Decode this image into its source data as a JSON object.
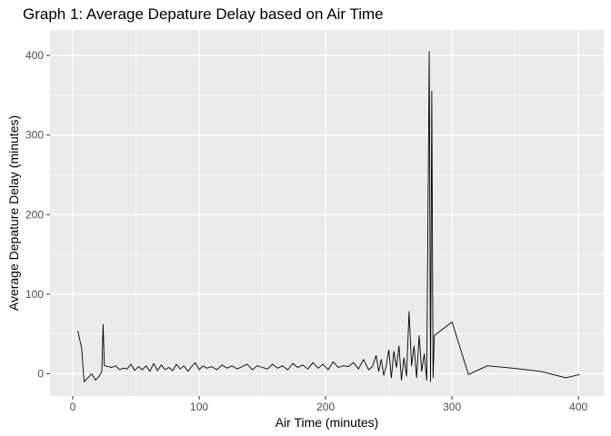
{
  "chart_data": {
    "type": "line",
    "title": "Graph 1: Average Depature Delay based on Air Time",
    "xlabel": "Air Time (minutes)",
    "ylabel": "Average Depature Delay (minutes)",
    "xlim": [
      -18,
      420
    ],
    "ylim": [
      -28,
      432
    ],
    "x_ticks": [
      0,
      100,
      200,
      300,
      400
    ],
    "y_ticks": [
      0,
      100,
      200,
      300,
      400
    ],
    "x_tick_labels": [
      "0",
      "100",
      "200",
      "300",
      "400"
    ],
    "y_tick_labels": [
      "0",
      "100",
      "200",
      "300",
      "400"
    ],
    "grid": true,
    "panel_background": "#ebebeb",
    "grid_color": "#ffffff",
    "line_color": "#000000",
    "series": [
      {
        "x": [
          4,
          7,
          9,
          12,
          15,
          18,
          21,
          23,
          24,
          25,
          28,
          31,
          34,
          37,
          40,
          43,
          46,
          49,
          52,
          55,
          58,
          61,
          64,
          67,
          70,
          73,
          76,
          79,
          82,
          85,
          88,
          91,
          94,
          97,
          100,
          103,
          106,
          110,
          114,
          118,
          122,
          126,
          130,
          134,
          138,
          142,
          146,
          150,
          154,
          158,
          162,
          166,
          170,
          174,
          178,
          182,
          186,
          190,
          194,
          198,
          202,
          206,
          210,
          214,
          218,
          222,
          226,
          230,
          234,
          237,
          240,
          242,
          244,
          246,
          248,
          250,
          252,
          254,
          256,
          258,
          260,
          262,
          264,
          266,
          268,
          270,
          272,
          274,
          276,
          278,
          280,
          281,
          282,
          283,
          284,
          285,
          286,
          300,
          313,
          328,
          348,
          370,
          390,
          401
        ],
        "y": [
          54,
          32,
          -10,
          -5,
          0,
          -8,
          -3,
          3,
          62,
          10,
          9,
          8,
          10,
          5,
          7,
          6,
          12,
          4,
          9,
          5,
          10,
          3,
          13,
          4,
          11,
          5,
          8,
          4,
          12,
          6,
          10,
          3,
          9,
          14,
          5,
          10,
          7,
          9,
          5,
          11,
          7,
          10,
          6,
          9,
          12,
          5,
          10,
          8,
          6,
          12,
          7,
          10,
          5,
          13,
          8,
          11,
          6,
          14,
          7,
          12,
          5,
          15,
          8,
          10,
          9,
          14,
          6,
          18,
          5,
          9,
          23,
          3,
          18,
          -2,
          10,
          30,
          -5,
          28,
          8,
          35,
          -8,
          20,
          -3,
          78,
          10,
          35,
          -5,
          48,
          3,
          25,
          -8,
          200,
          405,
          -10,
          355,
          -5,
          48,
          65,
          -1,
          10,
          7,
          3,
          -5,
          -1
        ]
      }
    ]
  }
}
